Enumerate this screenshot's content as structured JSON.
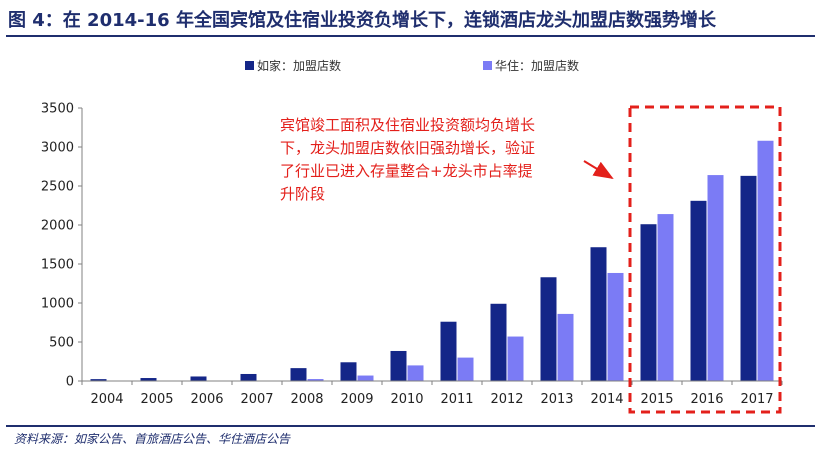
{
  "title": "图 4：在 2014-16 年全国宾馆及住宿业投资负增长下，连锁酒店龙头加盟店数强势增长",
  "source": "资料来源：如家公告、首旅酒店公告、华住酒店公告",
  "annotation": "宾馆竣工面积及住宿业投资额均负增长下，龙头加盟店数依旧强劲增长，验证了行业已进入存量整合+龙头市占率提升阶段",
  "colors": {
    "title": "#1f2e6e",
    "series1": "#142688",
    "series2": "#7b7bf5",
    "highlight": "#e3201b",
    "axis": "#808080"
  },
  "chart_data": {
    "type": "bar",
    "categories": [
      "2004",
      "2005",
      "2006",
      "2007",
      "2008",
      "2009",
      "2010",
      "2011",
      "2012",
      "2013",
      "2014",
      "2015",
      "2016",
      "2017"
    ],
    "series": [
      {
        "name": "如家：加盟店数",
        "values": [
          24,
          38,
          58,
          90,
          165,
          240,
          385,
          760,
          990,
          1330,
          1715,
          2010,
          2310,
          2630
        ]
      },
      {
        "name": "华住：加盟店数",
        "values": [
          0,
          0,
          0,
          0,
          25,
          70,
          200,
          300,
          570,
          860,
          1385,
          2140,
          2640,
          3080
        ]
      }
    ],
    "yticks": [
      0,
      500,
      1000,
      1500,
      2000,
      2500,
      3000,
      3500
    ],
    "ylim": [
      0,
      3500
    ],
    "legend": "top",
    "grid": false,
    "highlight_categories": [
      "2015",
      "2016",
      "2017"
    ]
  }
}
